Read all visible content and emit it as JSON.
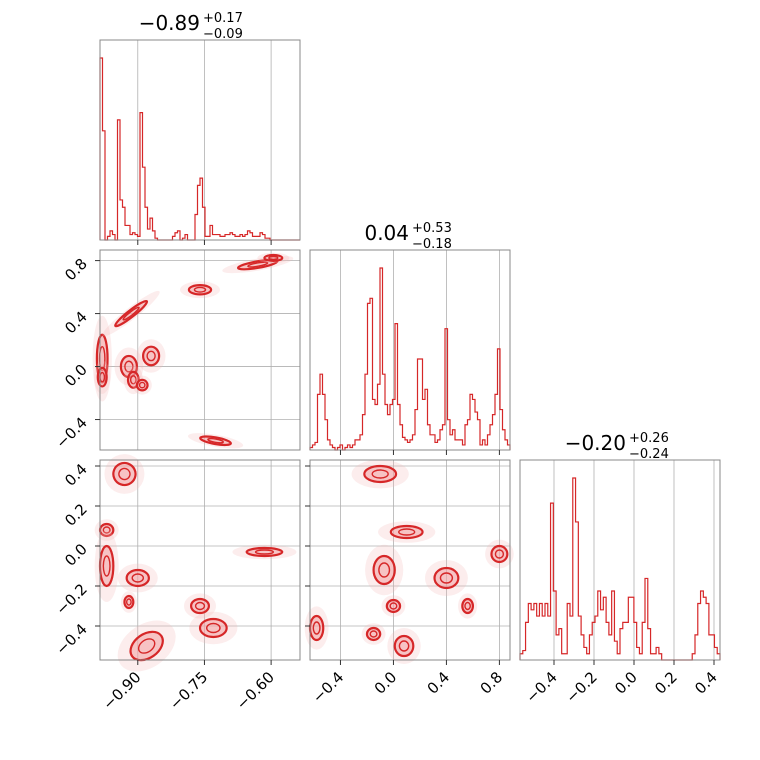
{
  "colors": {
    "accent": "#d62728",
    "contour_fill": "#f2a0a3",
    "frame": "#888888",
    "grid": "#b0b0b0"
  },
  "chart_data": {
    "type": "corner",
    "parameters": [
      {
        "title": {
          "median": "−0.89",
          "upper": "+0.17",
          "lower": "−0.09"
        },
        "range": [
          -0.985,
          -0.535
        ]
      },
      {
        "title": {
          "median": "0.04",
          "upper": "+0.53",
          "lower": "−0.18"
        },
        "range": [
          -0.63,
          0.88
        ]
      },
      {
        "title": {
          "median": "−0.20",
          "upper": "+0.26",
          "lower": "−0.24"
        },
        "range": [
          -0.57,
          0.43
        ]
      }
    ],
    "ticks": {
      "p1": [
        {
          "value": -0.9,
          "label": "−0.90"
        },
        {
          "value": -0.75,
          "label": "−0.75"
        },
        {
          "value": -0.6,
          "label": "−0.60"
        }
      ],
      "p2": [
        {
          "value": -0.4,
          "label": "−0.4"
        },
        {
          "value": 0.0,
          "label": "0.0"
        },
        {
          "value": 0.4,
          "label": "0.4"
        },
        {
          "value": 0.8,
          "label": "0.8"
        }
      ],
      "p3": [
        {
          "value": -0.4,
          "label": "−0.4"
        },
        {
          "value": -0.2,
          "label": "−0.2"
        },
        {
          "value": 0.0,
          "label": "0.0"
        },
        {
          "value": 0.2,
          "label": "0.2"
        },
        {
          "value": 0.4,
          "label": "0.4"
        }
      ]
    },
    "grid": true,
    "histograms": [
      {
        "param": "p1",
        "x0": -0.985,
        "x1": -0.535,
        "counts": [
          100,
          60,
          0,
          2,
          5,
          3,
          0,
          66,
          22,
          18,
          8,
          8,
          3,
          4,
          3,
          2,
          70,
          40,
          18,
          6,
          12,
          5,
          1,
          0,
          0,
          0,
          0,
          0,
          0,
          2,
          4,
          5,
          0,
          1,
          3,
          0,
          0,
          0,
          14,
          30,
          34,
          18,
          2,
          2,
          8,
          3,
          3,
          3,
          2,
          2,
          3,
          3,
          4,
          3,
          2,
          2,
          3,
          2,
          3,
          5,
          4,
          2,
          2,
          2,
          4,
          3,
          1,
          1,
          0,
          0,
          0,
          0,
          0,
          0,
          0,
          0,
          0,
          0,
          0,
          0
        ]
      },
      {
        "param": "p2",
        "x0": -0.63,
        "x1": 0.88,
        "counts": [
          1,
          2,
          3,
          22,
          30,
          22,
          12,
          4,
          2,
          1,
          0,
          1,
          2,
          0,
          1,
          2,
          1,
          2,
          4,
          4,
          6,
          14,
          30,
          58,
          60,
          20,
          18,
          26,
          72,
          30,
          18,
          14,
          18,
          20,
          50,
          18,
          10,
          5,
          4,
          3,
          4,
          6,
          16,
          36,
          36,
          20,
          24,
          10,
          6,
          6,
          3,
          4,
          8,
          10,
          48,
          12,
          6,
          8,
          4,
          4,
          4,
          2,
          10,
          12,
          22,
          20,
          15,
          12,
          2,
          4,
          2,
          6,
          10,
          14,
          22,
          40,
          16,
          8,
          4,
          2
        ]
      },
      {
        "param": "p3",
        "x0": -0.57,
        "x1": 0.43,
        "counts": [
          2,
          3,
          12,
          18,
          16,
          18,
          14,
          18,
          14,
          18,
          14,
          50,
          22,
          8,
          10,
          2,
          2,
          18,
          14,
          58,
          44,
          14,
          8,
          4,
          2,
          8,
          12,
          14,
          22,
          16,
          20,
          12,
          8,
          22,
          6,
          2,
          10,
          12,
          12,
          20,
          20,
          12,
          4,
          2,
          12,
          26,
          10,
          2,
          2,
          4,
          2,
          0,
          0,
          0,
          0,
          0,
          0,
          0,
          0,
          0,
          0,
          0,
          2,
          8,
          18,
          22,
          20,
          18,
          8,
          8,
          4,
          2
        ]
      }
    ],
    "contours": [
      {
        "panel": "p1-p2",
        "blobs": [
          {
            "x": -0.98,
            "y": 0.06,
            "rx": 0.012,
            "ry": 0.18
          },
          {
            "x": -0.98,
            "y": -0.08,
            "rx": 0.01,
            "ry": 0.07
          },
          {
            "x": -0.92,
            "y": 0.0,
            "rx": 0.018,
            "ry": 0.08
          },
          {
            "x": -0.91,
            "y": -0.1,
            "rx": 0.012,
            "ry": 0.06
          },
          {
            "x": -0.89,
            "y": -0.14,
            "rx": 0.012,
            "ry": 0.04
          },
          {
            "x": -0.87,
            "y": 0.08,
            "rx": 0.018,
            "ry": 0.07
          },
          {
            "x": -0.915,
            "y": 0.4,
            "rx": 0.045,
            "ry": 0.025,
            "rot": -38
          },
          {
            "x": -0.76,
            "y": 0.58,
            "rx": 0.025,
            "ry": 0.035
          },
          {
            "x": -0.63,
            "y": 0.77,
            "rx": 0.045,
            "ry": 0.025,
            "rot": -10
          },
          {
            "x": -0.595,
            "y": 0.82,
            "rx": 0.02,
            "ry": 0.022
          },
          {
            "x": -0.725,
            "y": -0.56,
            "rx": 0.035,
            "ry": 0.025,
            "rot": 10
          }
        ]
      },
      {
        "panel": "p1-p3",
        "blobs": [
          {
            "x": -0.97,
            "y": 0.08,
            "rx": 0.015,
            "ry": 0.03
          },
          {
            "x": -0.97,
            "y": -0.1,
            "rx": 0.015,
            "ry": 0.1
          },
          {
            "x": -0.93,
            "y": 0.36,
            "rx": 0.025,
            "ry": 0.055,
            "rot": 20
          },
          {
            "x": -0.9,
            "y": -0.16,
            "rx": 0.025,
            "ry": 0.04
          },
          {
            "x": -0.92,
            "y": -0.28,
            "rx": 0.01,
            "ry": 0.03
          },
          {
            "x": -0.76,
            "y": -0.3,
            "rx": 0.02,
            "ry": 0.035
          },
          {
            "x": -0.73,
            "y": -0.41,
            "rx": 0.03,
            "ry": 0.045
          },
          {
            "x": -0.615,
            "y": -0.03,
            "rx": 0.04,
            "ry": 0.02
          },
          {
            "x": -0.88,
            "y": -0.5,
            "rx": 0.04,
            "ry": 0.06,
            "rot": -35
          }
        ]
      },
      {
        "panel": "p2-p3",
        "blobs": [
          {
            "x": -0.1,
            "y": 0.36,
            "rx": 0.12,
            "ry": 0.04
          },
          {
            "x": 0.1,
            "y": 0.07,
            "rx": 0.12,
            "ry": 0.03
          },
          {
            "x": -0.07,
            "y": -0.12,
            "rx": 0.08,
            "ry": 0.07
          },
          {
            "x": 0.4,
            "y": -0.16,
            "rx": 0.09,
            "ry": 0.05
          },
          {
            "x": 0.8,
            "y": -0.04,
            "rx": 0.06,
            "ry": 0.04
          },
          {
            "x": 0.0,
            "y": -0.3,
            "rx": 0.05,
            "ry": 0.03
          },
          {
            "x": 0.56,
            "y": -0.3,
            "rx": 0.04,
            "ry": 0.035
          },
          {
            "x": -0.58,
            "y": -0.41,
            "rx": 0.05,
            "ry": 0.06
          },
          {
            "x": -0.15,
            "y": -0.44,
            "rx": 0.05,
            "ry": 0.03
          },
          {
            "x": 0.08,
            "y": -0.5,
            "rx": 0.07,
            "ry": 0.05
          }
        ]
      }
    ]
  }
}
